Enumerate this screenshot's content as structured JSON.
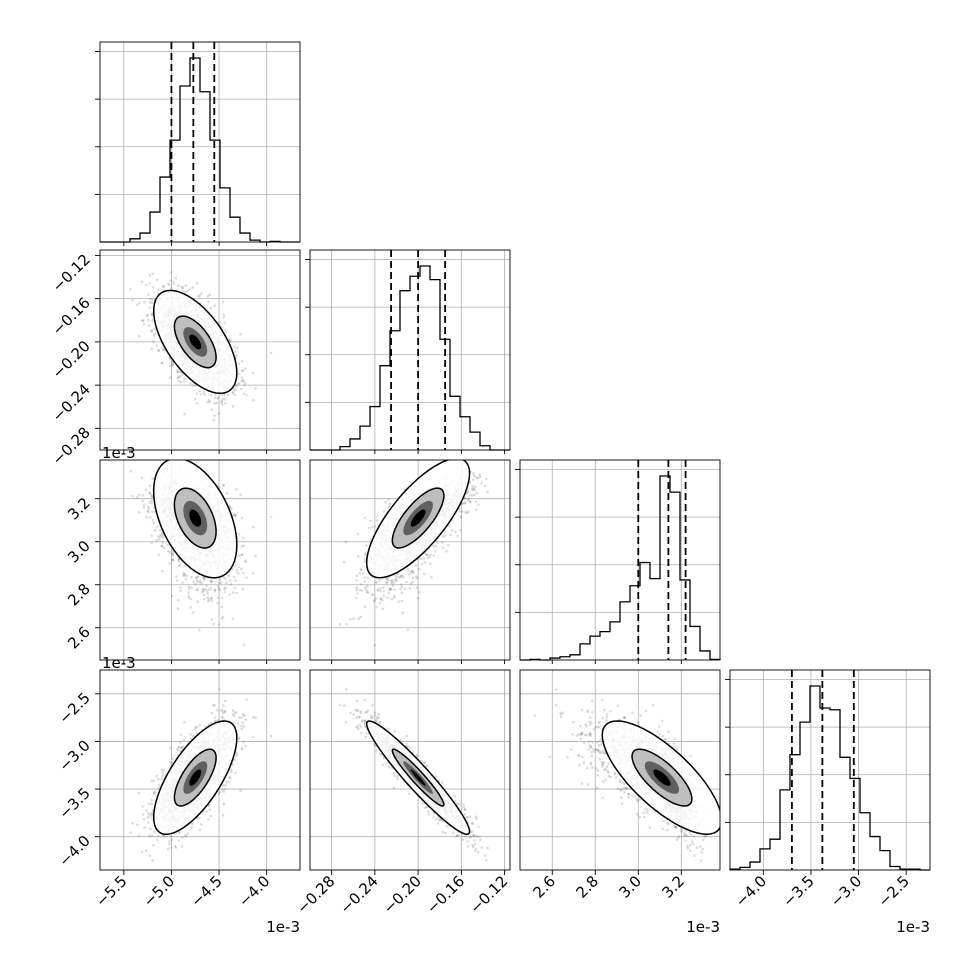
{
  "figure": {
    "type": "corner-plot",
    "parameter_count": 4
  },
  "chart_data": {
    "type": "corner",
    "parameters": [
      {
        "name": "",
        "scale_offset_label": "1e-3",
        "mean": -4.75,
        "std": 0.22,
        "range": [
          -5.75,
          -3.65
        ],
        "quantiles": [
          -5.0,
          -4.77,
          -4.55
        ],
        "ticks": [
          -5.5,
          -5.0,
          -4.5,
          -4.0
        ],
        "tick_labels": [
          "−5.5",
          "−5.0",
          "−4.5",
          "−4.0"
        ]
      },
      {
        "name": "",
        "scale_offset_label": "",
        "mean": -0.2,
        "std": 0.024,
        "range": [
          -0.3,
          -0.115
        ],
        "quantiles": [
          -0.225,
          -0.2,
          -0.175
        ],
        "ticks": [
          -0.28,
          -0.24,
          -0.2,
          -0.16,
          -0.12
        ],
        "tick_labels": [
          "−0.28",
          "−0.24",
          "−0.20",
          "−0.16",
          "−0.12"
        ]
      },
      {
        "name": "",
        "scale_offset_label": "1e-3",
        "mean": 3.11,
        "std": 0.14,
        "range": [
          2.45,
          3.38
        ],
        "quantiles": [
          3.0,
          3.14,
          3.22
        ],
        "ticks": [
          2.6,
          2.8,
          3.0,
          3.2
        ],
        "tick_labels": [
          "2.6",
          "2.8",
          "3.0",
          "3.2"
        ],
        "skew": "left"
      },
      {
        "name": "",
        "scale_offset_label": "1e-3",
        "mean": -3.38,
        "std": 0.3,
        "range": [
          -4.35,
          -2.25
        ],
        "quantiles": [
          -3.7,
          -3.38,
          -3.05
        ],
        "ticks": [
          -4.0,
          -3.5,
          -3.0,
          -2.5
        ],
        "tick_labels": [
          "−4.0",
          "−3.5",
          "−3.0",
          "−2.5"
        ]
      }
    ],
    "correlations": {
      "1-0": -0.6,
      "2-0": -0.45,
      "2-1": 0.75,
      "3-0": 0.7,
      "3-1": -0.95,
      "3-2": -0.75
    },
    "histogram_bins": 20,
    "contour_levels": [
      0.39,
      0.86
    ],
    "grid": true,
    "quantile_lines": "dashed"
  }
}
